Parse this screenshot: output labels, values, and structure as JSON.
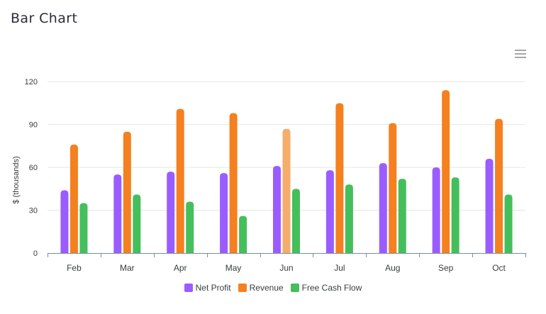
{
  "page": {
    "title": "Bar Chart"
  },
  "toolbar": {
    "menu_icon": "hamburger-menu-icon"
  },
  "colors": {
    "net_profit": "#9b5cff",
    "revenue": "#f5801f",
    "revenue_highlight": "#f5ad6b",
    "free_cash_flow": "#44bf5c",
    "grid": "#e6e6e6",
    "axis": "#78909c",
    "label": "#373d3f"
  },
  "chart_data": {
    "type": "bar",
    "title": "Bar Chart",
    "xlabel": "",
    "ylabel": "$ (thousands)",
    "categories": [
      "Feb",
      "Mar",
      "Apr",
      "May",
      "Jun",
      "Jul",
      "Aug",
      "Sep",
      "Oct"
    ],
    "yticks": [
      "0",
      "30",
      "60",
      "90",
      "120"
    ],
    "ylim": [
      0,
      135
    ],
    "grid": true,
    "legend_position": "bottom-center",
    "highlighted": {
      "series": "Revenue",
      "category": "Jun"
    },
    "series": [
      {
        "name": "Net Profit",
        "values": [
          44,
          55,
          57,
          56,
          61,
          58,
          63,
          60,
          66
        ]
      },
      {
        "name": "Revenue",
        "values": [
          76,
          85,
          101,
          98,
          87,
          105,
          91,
          114,
          94
        ]
      },
      {
        "name": "Free Cash Flow",
        "values": [
          35,
          41,
          36,
          26,
          45,
          48,
          52,
          53,
          41
        ]
      }
    ]
  }
}
